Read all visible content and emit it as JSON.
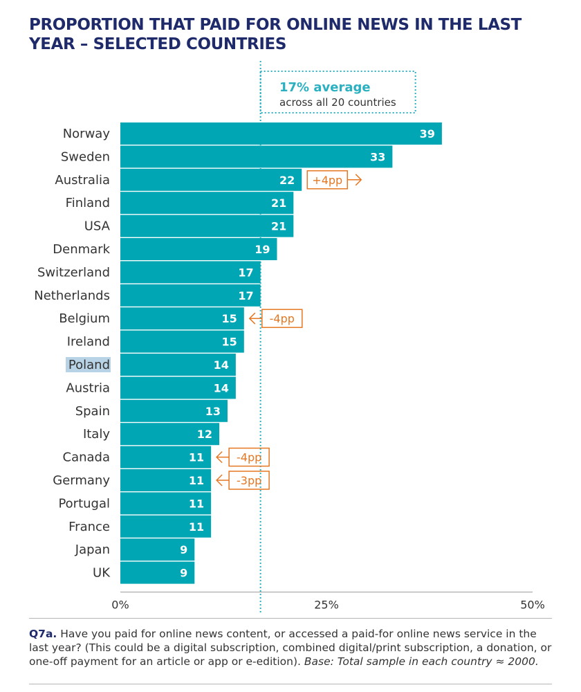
{
  "title": "PROPORTION THAT PAID FOR ONLINE NEWS IN THE LAST YEAR – SELECTED COUNTRIES",
  "average": {
    "value_label": "17% average",
    "text": "across all 20 countries",
    "value": 17
  },
  "chart_data": {
    "type": "bar",
    "orientation": "horizontal",
    "title": "PROPORTION THAT PAID FOR ONLINE NEWS IN THE LAST YEAR – SELECTED COUNTRIES",
    "categories": [
      "Norway",
      "Sweden",
      "Australia",
      "Finland",
      "USA",
      "Denmark",
      "Switzerland",
      "Netherlands",
      "Belgium",
      "Ireland",
      "Poland",
      "Austria",
      "Spain",
      "Italy",
      "Canada",
      "Germany",
      "Portugal",
      "France",
      "Japan",
      "UK"
    ],
    "values": [
      39,
      33,
      22,
      21,
      21,
      19,
      17,
      17,
      15,
      15,
      14,
      14,
      13,
      12,
      11,
      11,
      11,
      11,
      9,
      9
    ],
    "xlim": [
      0,
      50
    ],
    "xticks": [
      "0%",
      "25%",
      "50%"
    ],
    "xtick_values": [
      0,
      25,
      50
    ],
    "reference_line": 17,
    "highlighted_category": "Poland",
    "annotations": [
      {
        "category": "Australia",
        "text": "+4pp",
        "direction": "up"
      },
      {
        "category": "Belgium",
        "text": "-4pp",
        "direction": "down"
      },
      {
        "category": "Canada",
        "text": "-4pp",
        "direction": "down"
      },
      {
        "category": "Germany",
        "text": "-3pp",
        "direction": "down"
      }
    ],
    "grid": false
  },
  "colors": {
    "bar": "#00a6b4",
    "title": "#1f2a6b",
    "average": "#2ab0c0",
    "change": "#e57722",
    "highlight": "#b8d3e6"
  },
  "footnote": {
    "question_id": "Q7a.",
    "question": "Have you paid for online news content, or accessed a paid-for online news service in the last year? (This could be a digital subscription, combined digital/print subscription, a donation, or one-off payment for an article or app or e-edition).",
    "base": "Base: Total sample in each country ≈ 2000."
  }
}
